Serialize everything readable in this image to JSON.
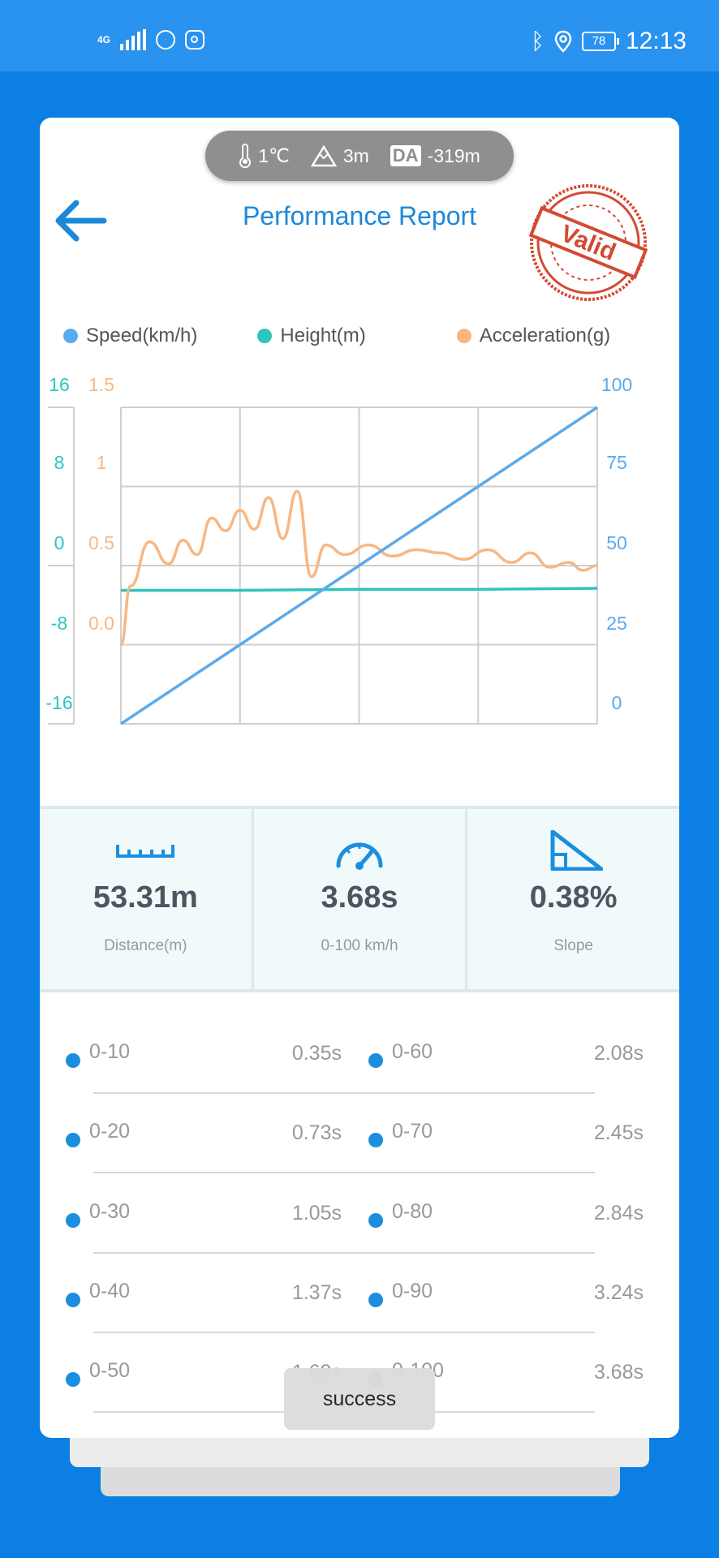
{
  "status_bar": {
    "network": "4G",
    "battery": "78",
    "time": "12:13"
  },
  "conditions": {
    "temperature": "1℃",
    "altitude": "3m",
    "da_badge": "DA",
    "density_altitude": "-319m"
  },
  "header": {
    "title": "Performance Report",
    "stamp_text": "Valid",
    "colors": {
      "accent": "#1e88d8",
      "stamp": "#d34a32"
    }
  },
  "legend": [
    {
      "label": "Speed(km/h)",
      "color": "#5aaaec"
    },
    {
      "label": "Height(m)",
      "color": "#2ec4c0"
    },
    {
      "label": "Acceleration(g)",
      "color": "#f8b782"
    }
  ],
  "chart_data": {
    "type": "line",
    "grid": true,
    "axes": {
      "height_axis": {
        "ticks": [
          "16",
          "8",
          "0",
          "-8",
          "-16"
        ],
        "range": [
          -16,
          16
        ]
      },
      "acceleration_axis": {
        "ticks": [
          "1.5",
          "1",
          "0.5",
          "0.0"
        ],
        "range": [
          -0.5,
          1.5
        ]
      },
      "speed_axis": {
        "ticks": [
          "100",
          "75",
          "50",
          "25",
          "0"
        ],
        "range": [
          0,
          100
        ]
      }
    },
    "series": [
      {
        "name": "Speed(km/h)",
        "x": [
          0,
          0.25,
          0.5,
          0.75,
          1.0
        ],
        "y": [
          0,
          25,
          50,
          75,
          100
        ]
      },
      {
        "name": "Height(m)",
        "x": [
          0,
          0.25,
          0.5,
          0.75,
          1.0
        ],
        "y": [
          -2.5,
          -2.5,
          -2.4,
          -2.4,
          -2.3
        ]
      },
      {
        "name": "Acceleration(g)",
        "x": [
          0,
          0.02,
          0.06,
          0.1,
          0.13,
          0.16,
          0.19,
          0.22,
          0.25,
          0.28,
          0.31,
          0.34,
          0.37,
          0.4,
          0.43,
          0.47,
          0.52,
          0.57,
          0.62,
          0.67,
          0.72,
          0.77,
          0.82,
          0.86,
          0.9,
          0.94,
          0.97,
          1.0
        ],
        "y": [
          -0.0,
          0.37,
          0.65,
          0.51,
          0.66,
          0.57,
          0.8,
          0.72,
          0.85,
          0.73,
          0.93,
          0.67,
          0.97,
          0.43,
          0.63,
          0.57,
          0.63,
          0.56,
          0.6,
          0.58,
          0.54,
          0.6,
          0.52,
          0.58,
          0.49,
          0.52,
          0.47,
          0.5
        ]
      }
    ]
  },
  "stats": [
    {
      "value": "53.31m",
      "label": "Distance(m)",
      "icon": "ruler-icon"
    },
    {
      "value": "3.68s",
      "label": "0-100 km/h",
      "icon": "speedometer-icon"
    },
    {
      "value": "0.38%",
      "label": "Slope",
      "icon": "slope-icon"
    }
  ],
  "splits": [
    {
      "left_name": "0-10",
      "left_time": "0.35s",
      "right_name": "0-60",
      "right_time": "2.08s"
    },
    {
      "left_name": "0-20",
      "left_time": "0.73s",
      "right_name": "0-70",
      "right_time": "2.45s"
    },
    {
      "left_name": "0-30",
      "left_time": "1.05s",
      "right_name": "0-80",
      "right_time": "2.84s"
    },
    {
      "left_name": "0-40",
      "left_time": "1.37s",
      "right_name": "0-90",
      "right_time": "3.24s"
    },
    {
      "left_name": "0-50",
      "left_time": "1.69s",
      "right_name": "0-100",
      "right_time": "3.68s"
    }
  ],
  "toast": {
    "message": "success"
  }
}
